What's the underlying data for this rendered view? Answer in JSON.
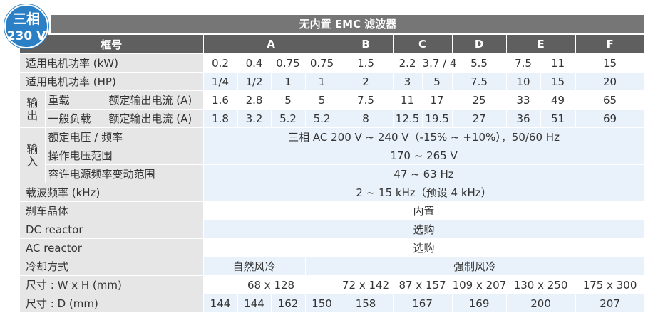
{
  "badge": {
    "phase": "三相",
    "voltage": "230 V"
  },
  "title": "无内置 EMC 滤波器",
  "frame_label": "框号",
  "frames": [
    "A",
    "B",
    "C",
    "D",
    "E",
    "F"
  ],
  "rows": {
    "power_kw": {
      "label": "适用电机功率 (kW)",
      "values": [
        "0.2",
        "0.4",
        "0.75",
        "0.75",
        "1.5",
        "2.2",
        "3.7 / 4",
        "5.5",
        "7.5",
        "11",
        "15"
      ]
    },
    "power_hp": {
      "label": "适用电机功率 (HP)",
      "values": [
        "1/4",
        "1/2",
        "1",
        "1",
        "2",
        "3",
        "5",
        "7.5",
        "10",
        "15",
        "20"
      ]
    },
    "output": {
      "group_label": "输出",
      "heavy": {
        "label": "重载",
        "sublabel": "额定输出电流 (A)",
        "values": [
          "1.6",
          "2.8",
          "5",
          "5",
          "7.5",
          "11",
          "17",
          "25",
          "33",
          "49",
          "65"
        ]
      },
      "normal": {
        "label": "一般负载",
        "sublabel": "额定输出电流 (A)",
        "values": [
          "1.8",
          "3.2",
          "5.2",
          "5.2",
          "8",
          "12.5",
          "19.5",
          "27",
          "36",
          "51",
          "69"
        ]
      }
    },
    "input": {
      "group_label": "输入",
      "rated": {
        "label": "额定电压 / 频率",
        "value": "三相 AC 200 V ~ 240 V（-15% ~ +10%），50/60 Hz"
      },
      "range": {
        "label": "操作电压范围",
        "value": "170 ~ 265 V"
      },
      "freq": {
        "label": "容许电源频率变动范围",
        "value": "47 ~ 63 Hz"
      }
    },
    "carrier": {
      "label": "载波频率 (kHz)",
      "value": "2 ~ 15 kHz（预设 4 kHz）"
    },
    "brake": {
      "label": "刹车晶体",
      "value": "内置"
    },
    "dc_reactor": {
      "label": "DC reactor",
      "value": "选购"
    },
    "ac_reactor": {
      "label": "AC reactor",
      "value": "选购"
    },
    "cooling": {
      "label": "冷却方式",
      "natural": "自然风冷",
      "forced": "强制风冷"
    },
    "size_wh": {
      "label": "尺寸 : W x H (mm)",
      "values": [
        "68 x 128",
        "72 x 142",
        "87 x 157",
        "109 x 207",
        "130 x 250",
        "175 x 300"
      ]
    },
    "size_d": {
      "label": "尺寸 : D (mm)",
      "values": [
        "144",
        "144",
        "162",
        "150",
        "158",
        "167",
        "169",
        "200",
        "207"
      ]
    }
  }
}
